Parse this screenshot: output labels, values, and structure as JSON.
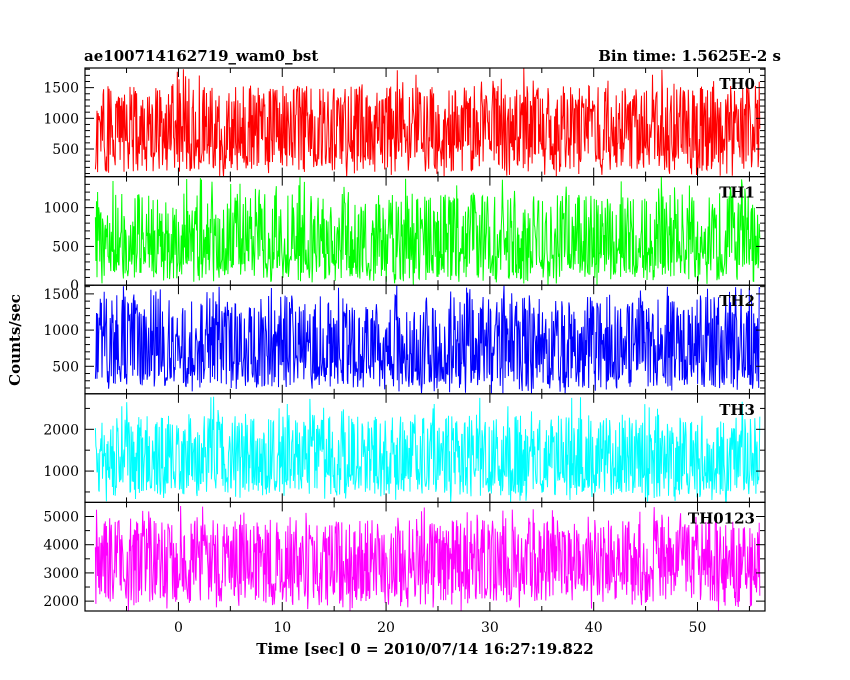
{
  "chart_data": {
    "type": "line",
    "title": "ae100714162719_wam0_bst",
    "bin_time_label": "Bin time: 1.5625E-2 s",
    "xlabel": "Time [sec] 0 = 2010/07/14 16:27:19.822",
    "ylabel": "Counts/sec",
    "xlim": [
      -9,
      56.5
    ],
    "data_x_range": [
      -8,
      56
    ],
    "x_ticks": [
      0,
      10,
      20,
      30,
      40,
      50
    ],
    "panels": [
      {
        "name": "TH0",
        "color": "#ff0000",
        "ylim": [
          50,
          1820
        ],
        "y_ticks": [
          500,
          1000,
          1500
        ],
        "mean": 820,
        "low": 180,
        "high": 1500,
        "max": 1820
      },
      {
        "name": "TH1",
        "color": "#00ff00",
        "ylim": [
          0,
          1400
        ],
        "y_ticks": [
          0,
          500,
          1000
        ],
        "mean": 560,
        "low": 100,
        "high": 1150,
        "max": 1400
      },
      {
        "name": "TH2",
        "color": "#0000ff",
        "ylim": [
          120,
          1620
        ],
        "y_ticks": [
          500,
          1000,
          1500
        ],
        "mean": 770,
        "low": 250,
        "high": 1450,
        "max": 1620
      },
      {
        "name": "TH3",
        "color": "#00ffff",
        "ylim": [
          250,
          2850
        ],
        "y_ticks": [
          1000,
          2000
        ],
        "mean": 1280,
        "low": 500,
        "high": 2300,
        "max": 2800
      },
      {
        "name": "TH0123",
        "color": "#ff00ff",
        "ylim": [
          1650,
          5500
        ],
        "y_ticks": [
          2000,
          3000,
          4000,
          5000
        ],
        "mean": 3420,
        "low": 2050,
        "high": 4800,
        "max": 5400
      }
    ]
  }
}
